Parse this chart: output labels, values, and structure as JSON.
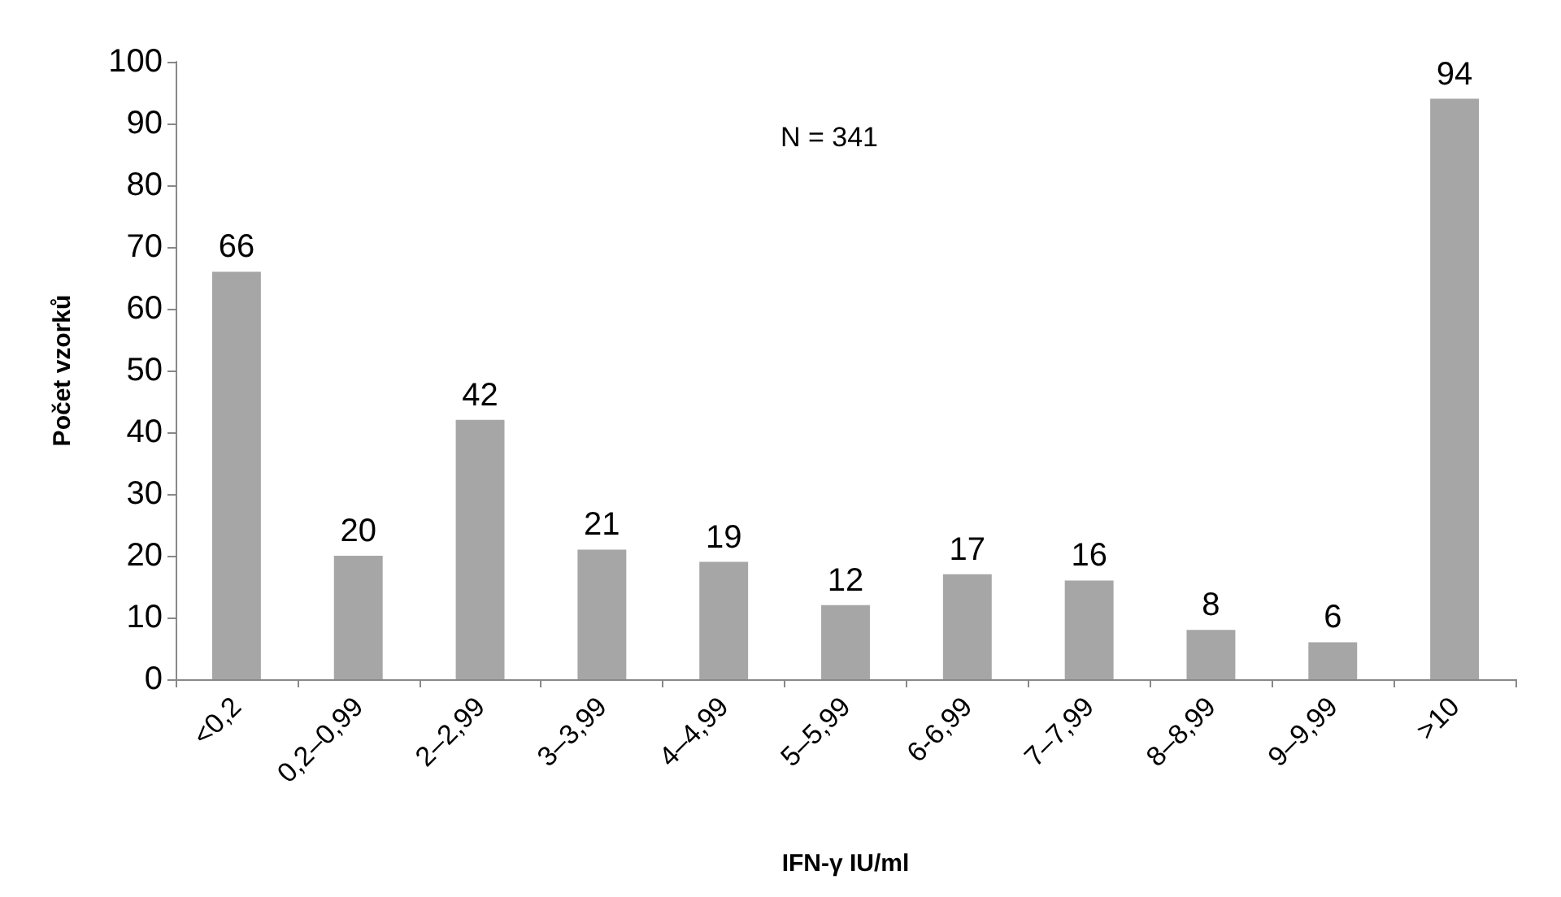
{
  "chart_data": {
    "type": "bar",
    "xlabel": "IFN-γ IU/ml",
    "ylabel": "Počet vzorků",
    "categories": [
      "<0,2",
      "0,2–0,99",
      "2–2,99",
      "3–3,99",
      "4–4,99",
      "5–5,99",
      "6-6,99",
      "7–7,99",
      "8–8,99",
      "9–9,99",
      ">10"
    ],
    "values": [
      66,
      20,
      42,
      21,
      19,
      12,
      17,
      16,
      8,
      6,
      94
    ],
    "color": "#a6a6a6",
    "ylim": [
      0,
      100
    ],
    "yticks": [
      0,
      10,
      20,
      30,
      40,
      50,
      60,
      70,
      80,
      90,
      100
    ],
    "grid": false,
    "data_labels": true,
    "annotations": [
      "N = 341"
    ]
  }
}
